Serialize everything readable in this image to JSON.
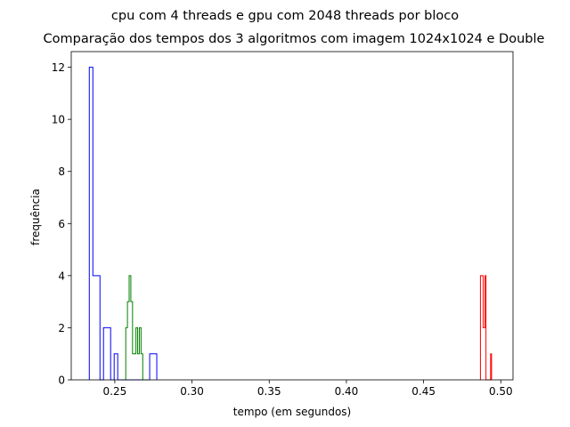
{
  "chart_data": {
    "type": "histogram",
    "suptitle": "cpu com 4 threads e gpu com 2048 threads por bloco",
    "title": "Comparação dos tempos dos 3 algoritmos com imagem 1024x1024 e Double",
    "xlabel": "tempo (em segundos)",
    "ylabel": "frequência",
    "xlim": [
      0.2218,
      0.5079
    ],
    "ylim": [
      0,
      12.6
    ],
    "xticks": [
      0.25,
      0.3,
      0.35,
      0.4,
      0.45,
      0.5
    ],
    "xtick_labels": [
      "0.25",
      "0.30",
      "0.35",
      "0.40",
      "0.45",
      "0.50"
    ],
    "yticks": [
      0,
      2,
      4,
      6,
      8,
      10,
      12
    ],
    "ytick_labels": [
      "0",
      "2",
      "4",
      "6",
      "8",
      "10",
      "12"
    ],
    "grid": false,
    "legend": "none",
    "histtype": "step",
    "series": [
      {
        "color": "#0000ff",
        "bin_edges": [
          0.2335,
          0.2358,
          0.2381,
          0.2404,
          0.2427,
          0.245,
          0.2473,
          0.2496,
          0.2519,
          0.2542,
          0.2565,
          0.2588,
          0.2611,
          0.2634,
          0.2657,
          0.268,
          0.2703,
          0.2726,
          0.2749,
          0.2772
        ],
        "counts": [
          12,
          4,
          4,
          0,
          2,
          2,
          0,
          1,
          0,
          0,
          0,
          0,
          0,
          0,
          0,
          0,
          0,
          1,
          1
        ]
      },
      {
        "color": "#008000",
        "bin_edges": [
          0.2571,
          0.2582,
          0.2593,
          0.2604,
          0.2615,
          0.2626,
          0.2637,
          0.2648,
          0.2659,
          0.267,
          0.2681,
          0.2692,
          0.2703,
          0.2714,
          0.2725
        ],
        "counts": [
          2,
          3,
          4,
          3,
          1,
          1,
          2,
          1,
          2,
          1,
          0,
          0,
          0,
          0
        ]
      },
      {
        "color": "#ff0000",
        "bin_edges": [
          0.4868,
          0.4874,
          0.488,
          0.4886,
          0.4892,
          0.4898,
          0.4904,
          0.491,
          0.4916,
          0.4922,
          0.4928,
          0.4934,
          0.494
        ],
        "counts": [
          4,
          4,
          4,
          2,
          2,
          4,
          0,
          0,
          0,
          0,
          0,
          1
        ]
      }
    ]
  }
}
